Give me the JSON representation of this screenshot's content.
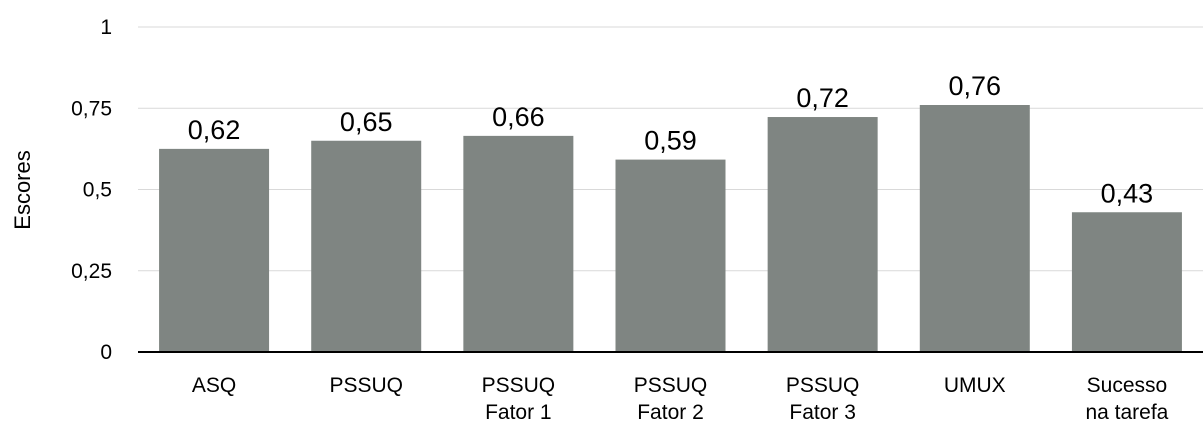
{
  "chart_data": {
    "type": "bar",
    "title": "",
    "xlabel": "",
    "ylabel": "Escores",
    "ylim": [
      0,
      1
    ],
    "yticks": [
      {
        "value": 0,
        "label": "0"
      },
      {
        "value": 0.25,
        "label": "0,25"
      },
      {
        "value": 0.5,
        "label": "0,5"
      },
      {
        "value": 0.75,
        "label": "0,75"
      },
      {
        "value": 1,
        "label": "1"
      }
    ],
    "grid": true,
    "bar_color": "#7f8582",
    "grid_color": "#d9d9d9",
    "categories": [
      [
        "ASQ"
      ],
      [
        "PSSUQ"
      ],
      [
        "PSSUQ",
        "Fator 1"
      ],
      [
        "PSSUQ",
        "Fator 2"
      ],
      [
        "PSSUQ",
        "Fator 3"
      ],
      [
        "UMUX"
      ],
      [
        "Sucesso",
        "na tarefa"
      ]
    ],
    "values": [
      0.625,
      0.65,
      0.665,
      0.592,
      0.723,
      0.76,
      0.43
    ],
    "value_labels": [
      "0,62",
      "0,65",
      "0,66",
      "0,59",
      "0,72",
      "0,76",
      "0,43"
    ]
  }
}
